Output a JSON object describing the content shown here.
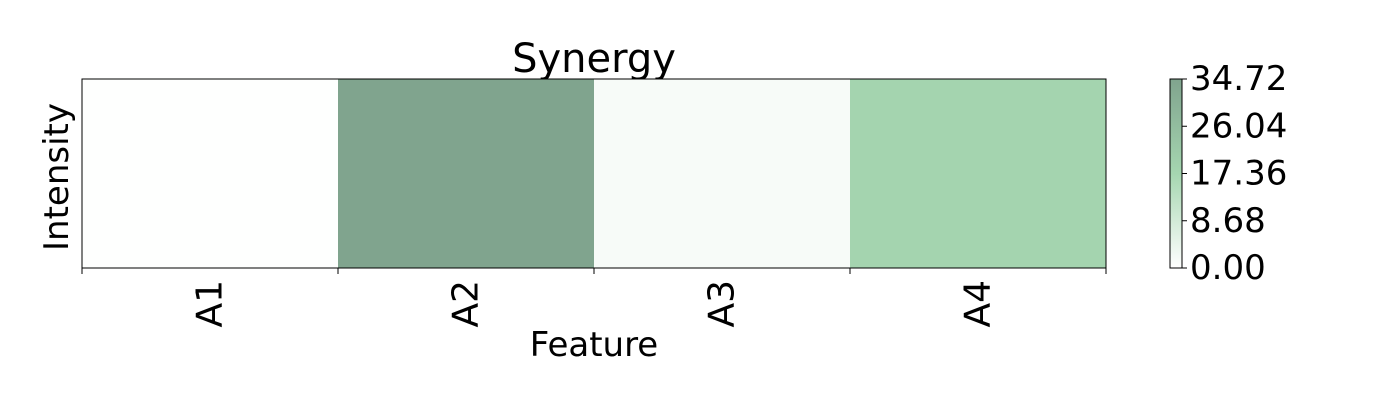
{
  "chart_data": {
    "type": "heatmap",
    "title": "Synergy",
    "xlabel": "Feature",
    "ylabel": "Intensity",
    "categories": [
      "A1",
      "A2",
      "A3",
      "A4"
    ],
    "values": [
      0.2,
      34.72,
      1.5,
      18.0
    ],
    "colorbar": {
      "min": 0.0,
      "max": 34.72,
      "ticks": [
        "0.00",
        "8.68",
        "17.36",
        "26.04",
        "34.72"
      ],
      "color_min": "#ffffff",
      "color_mid": "#a5d6b0",
      "color_max": "#80a48e"
    },
    "grid": false,
    "legend": "none"
  }
}
